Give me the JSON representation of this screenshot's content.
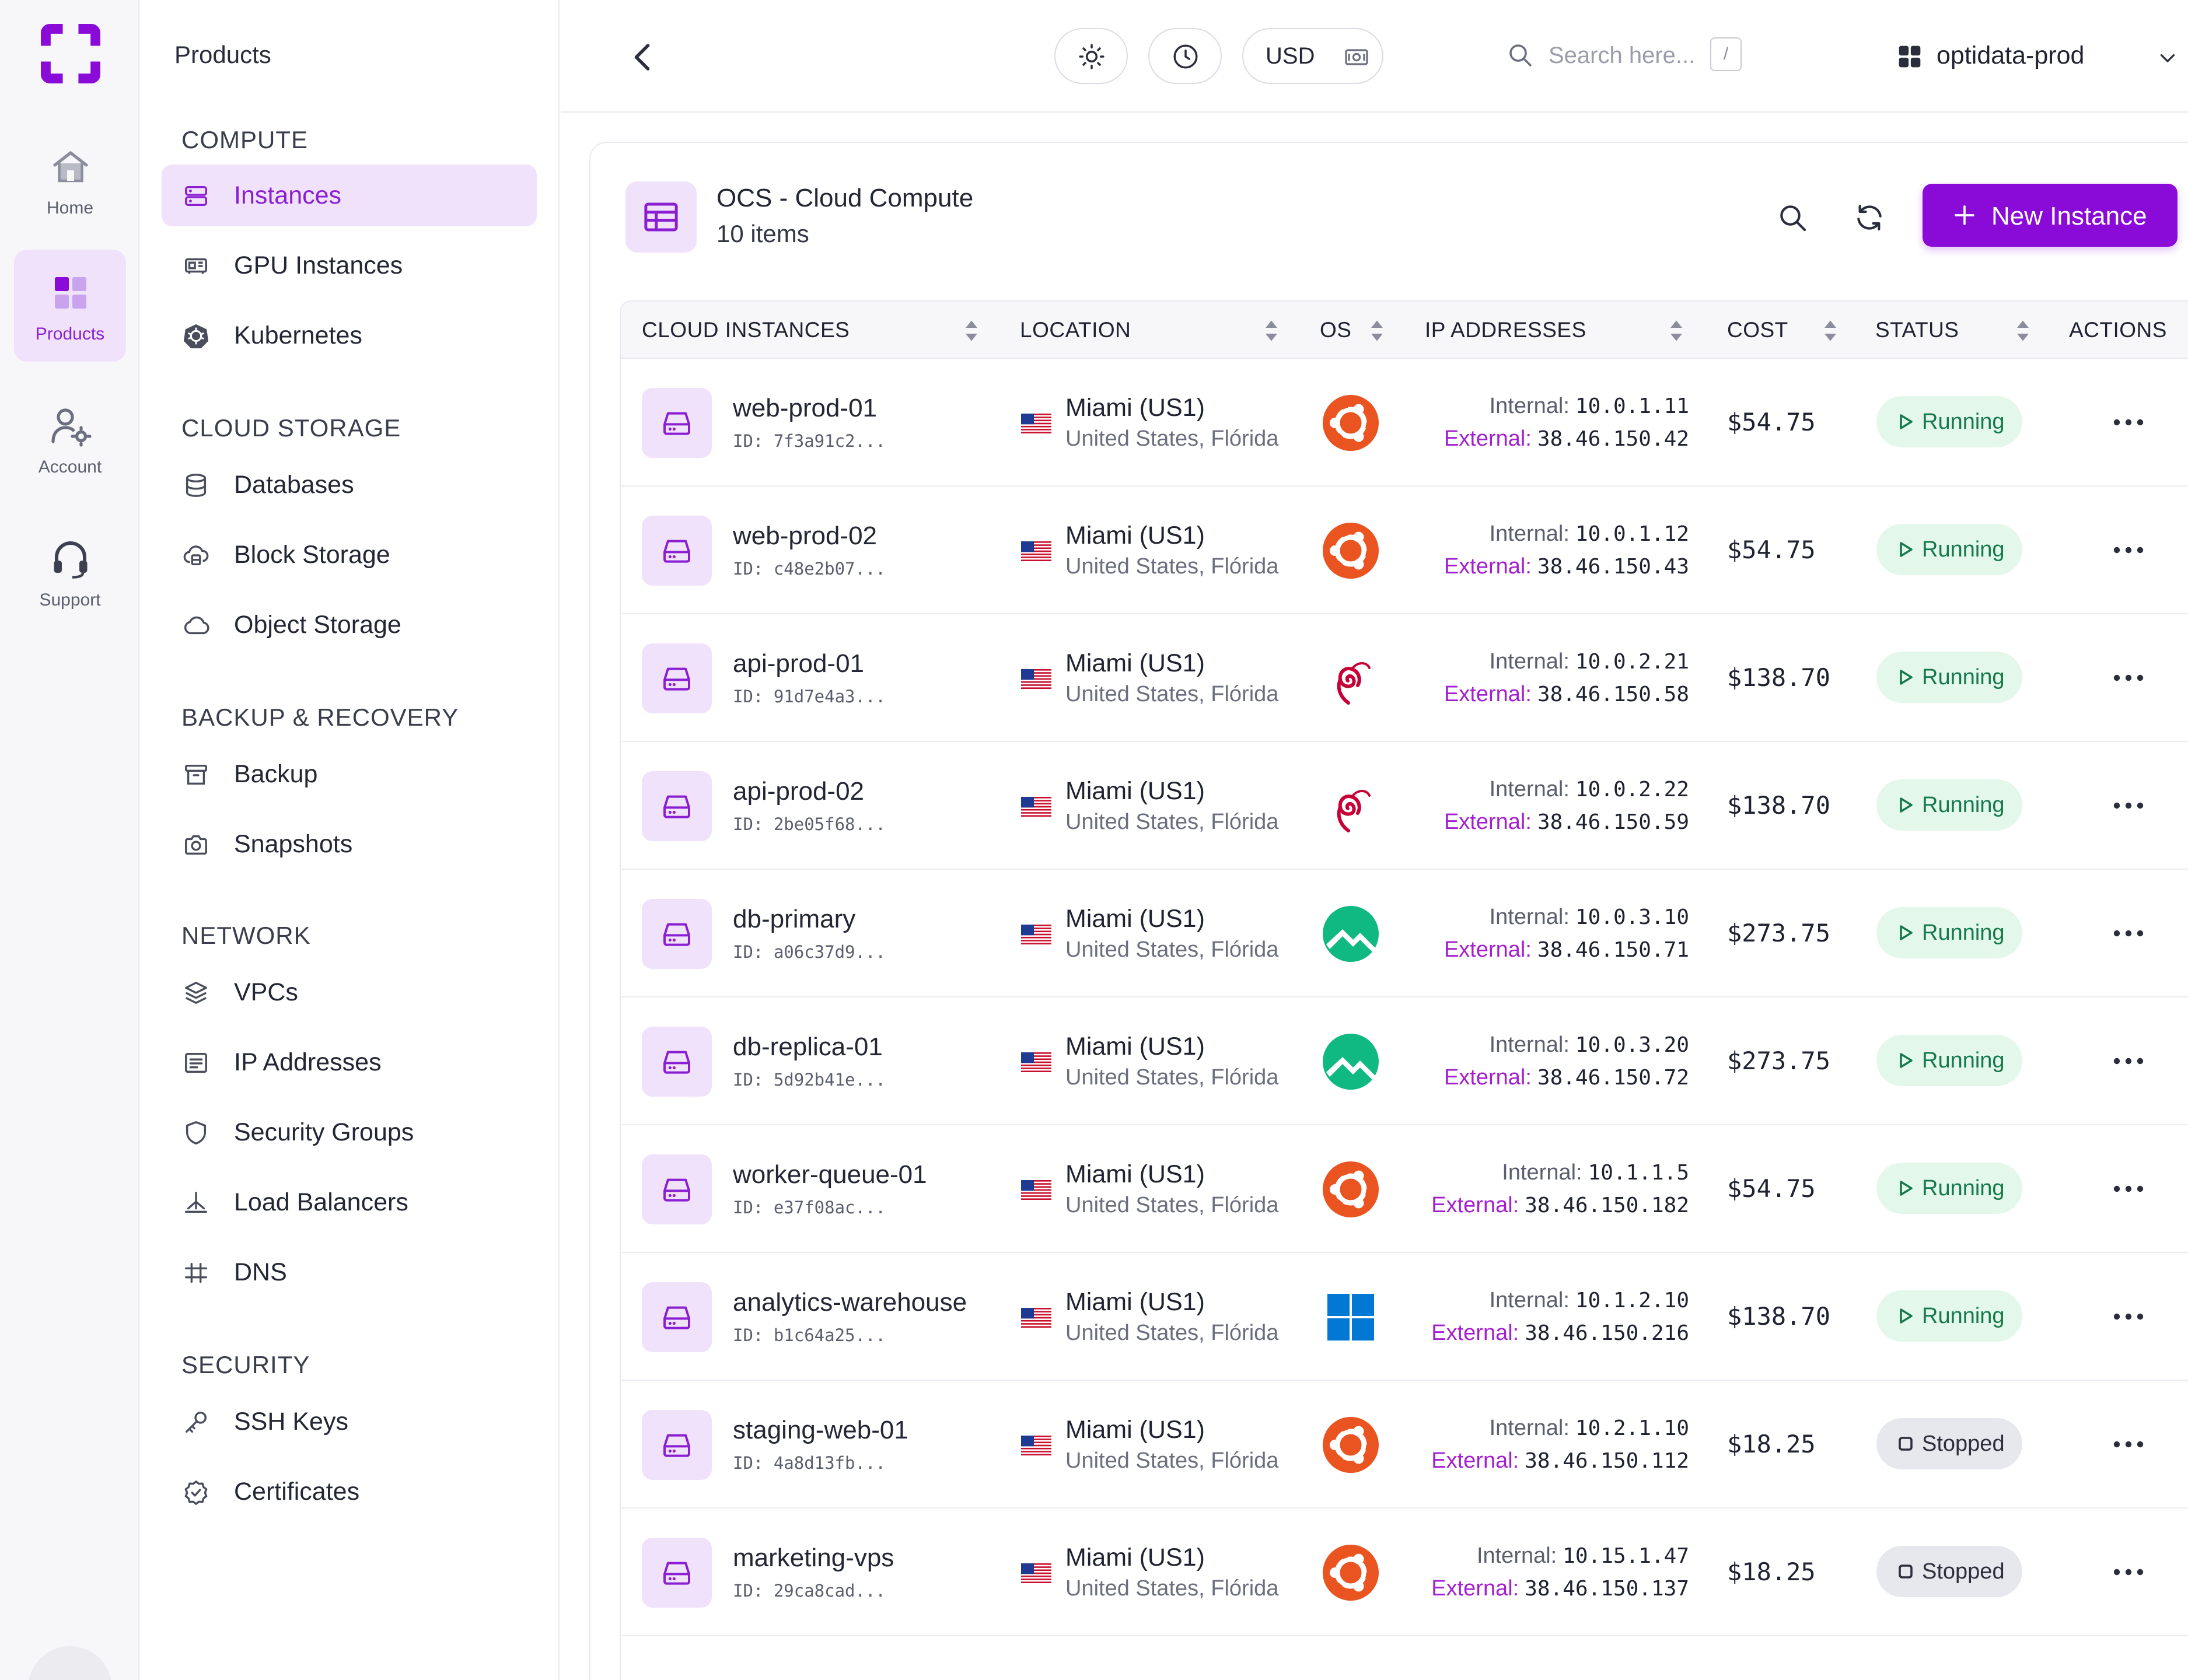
{
  "rail": {
    "items": [
      {
        "label": "Home",
        "icon": "home-icon"
      },
      {
        "label": "Products",
        "icon": "grid-icon",
        "active": true
      },
      {
        "label": "Account",
        "icon": "user-settings-icon"
      },
      {
        "label": "Support",
        "icon": "headset-icon"
      }
    ]
  },
  "sidebar": {
    "title": "Products",
    "sections": [
      {
        "title": "COMPUTE",
        "items": [
          {
            "label": "Instances",
            "icon": "server-icon",
            "active": true
          },
          {
            "label": "GPU Instances",
            "icon": "gpu-icon"
          },
          {
            "label": "Kubernetes",
            "icon": "kubernetes-icon"
          }
        ]
      },
      {
        "title": "CLOUD STORAGE",
        "items": [
          {
            "label": "Databases",
            "icon": "database-icon"
          },
          {
            "label": "Block Storage",
            "icon": "block-storage-icon"
          },
          {
            "label": "Object Storage",
            "icon": "cloud-icon"
          }
        ]
      },
      {
        "title": "BACKUP & RECOVERY",
        "items": [
          {
            "label": "Backup",
            "icon": "archive-icon"
          },
          {
            "label": "Snapshots",
            "icon": "camera-icon"
          }
        ]
      },
      {
        "title": "NETWORK",
        "items": [
          {
            "label": "VPCs",
            "icon": "layers-icon"
          },
          {
            "label": "IP Addresses",
            "icon": "ip-list-icon"
          },
          {
            "label": "Security Groups",
            "icon": "shield-icon"
          },
          {
            "label": "Load Balancers",
            "icon": "load-balancer-icon"
          },
          {
            "label": "DNS",
            "icon": "dns-icon"
          }
        ]
      },
      {
        "title": "SECURITY",
        "items": [
          {
            "label": "SSH Keys",
            "icon": "key-icon"
          },
          {
            "label": "Certificates",
            "icon": "certificate-icon"
          }
        ]
      }
    ]
  },
  "topbar": {
    "currency": "USD",
    "search_placeholder": "Search here...",
    "search_shortcut": "/",
    "org_name": "optidata-prod"
  },
  "card": {
    "title": "OCS - Cloud Compute",
    "count": "10 items",
    "new_button": "New Instance"
  },
  "table": {
    "columns": [
      "CLOUD INSTANCES",
      "LOCATION",
      "OS",
      "IP ADDRESSES",
      "COST",
      "STATUS",
      "ACTIONS"
    ],
    "internal_label": "Internal:",
    "external_label": "External:",
    "rows": [
      {
        "name": "web-prod-01",
        "id": "ID: 7f3a91c2...",
        "city": "Miami (US1)",
        "region": "United States, Flórida",
        "os": "ubuntu",
        "internal": "10.0.1.11",
        "external": "38.46.150.42",
        "cost": "$54.75",
        "status": "Running"
      },
      {
        "name": "web-prod-02",
        "id": "ID: c48e2b07...",
        "city": "Miami (US1)",
        "region": "United States, Flórida",
        "os": "ubuntu",
        "internal": "10.0.1.12",
        "external": "38.46.150.43",
        "cost": "$54.75",
        "status": "Running"
      },
      {
        "name": "api-prod-01",
        "id": "ID: 91d7e4a3...",
        "city": "Miami (US1)",
        "region": "United States, Flórida",
        "os": "debian",
        "internal": "10.0.2.21",
        "external": "38.46.150.58",
        "cost": "$138.70",
        "status": "Running"
      },
      {
        "name": "api-prod-02",
        "id": "ID: 2be05f68...",
        "city": "Miami (US1)",
        "region": "United States, Flórida",
        "os": "debian",
        "internal": "10.0.2.22",
        "external": "38.46.150.59",
        "cost": "$138.70",
        "status": "Running"
      },
      {
        "name": "db-primary",
        "id": "ID: a06c37d9...",
        "city": "Miami (US1)",
        "region": "United States, Flórida",
        "os": "rocky",
        "internal": "10.0.3.10",
        "external": "38.46.150.71",
        "cost": "$273.75",
        "status": "Running"
      },
      {
        "name": "db-replica-01",
        "id": "ID: 5d92b41e...",
        "city": "Miami (US1)",
        "region": "United States, Flórida",
        "os": "rocky",
        "internal": "10.0.3.20",
        "external": "38.46.150.72",
        "cost": "$273.75",
        "status": "Running"
      },
      {
        "name": "worker-queue-01",
        "id": "ID: e37f08ac...",
        "city": "Miami (US1)",
        "region": "United States, Flórida",
        "os": "ubuntu",
        "internal": "10.1.1.5",
        "external": "38.46.150.182",
        "cost": "$54.75",
        "status": "Running"
      },
      {
        "name": "analytics-warehouse",
        "id": "ID: b1c64a25...",
        "city": "Miami (US1)",
        "region": "United States, Flórida",
        "os": "windows",
        "internal": "10.1.2.10",
        "external": "38.46.150.216",
        "cost": "$138.70",
        "status": "Running"
      },
      {
        "name": "staging-web-01",
        "id": "ID: 4a8d13fb...",
        "city": "Miami (US1)",
        "region": "United States, Flórida",
        "os": "ubuntu",
        "internal": "10.2.1.10",
        "external": "38.46.150.112",
        "cost": "$18.25",
        "status": "Stopped"
      },
      {
        "name": "marketing-vps",
        "id": "ID: 29ca8cad...",
        "city": "Miami (US1)",
        "region": "United States, Flórida",
        "os": "ubuntu",
        "internal": "10.15.1.47",
        "external": "38.46.150.137",
        "cost": "$18.25",
        "status": "Stopped"
      }
    ]
  },
  "colors": {
    "accent": "#8a0ad7",
    "accent_soft": "#f1e2fb",
    "running_bg": "#e3f8ea",
    "running_fg": "#16794a",
    "stopped_bg": "#e6e8ee",
    "ubuntu": "#e95420",
    "debian": "#c70036",
    "rocky": "#10b981",
    "windows": "#0078d4"
  }
}
